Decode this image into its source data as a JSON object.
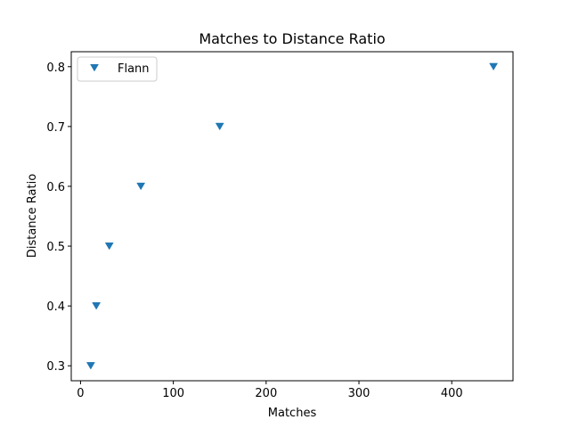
{
  "chart_data": {
    "type": "scatter",
    "title": "Matches to Distance Ratio",
    "xlabel": "Matches",
    "ylabel": "Distance Ratio",
    "xlim": [
      -10,
      466
    ],
    "ylim": [
      0.275,
      0.825
    ],
    "xticks": [
      0,
      100,
      200,
      300,
      400
    ],
    "yticks": [
      0.3,
      0.4,
      0.5,
      0.6,
      0.7,
      0.8
    ],
    "marker": "triangle-down",
    "legend_position": "upper left",
    "grid": false,
    "series": [
      {
        "name": "Flann",
        "color": "#1f77b4",
        "points": [
          {
            "x": 11,
            "y": 0.3
          },
          {
            "x": 17,
            "y": 0.4
          },
          {
            "x": 31,
            "y": 0.5
          },
          {
            "x": 65,
            "y": 0.6
          },
          {
            "x": 150,
            "y": 0.7
          },
          {
            "x": 445,
            "y": 0.8
          }
        ]
      }
    ]
  }
}
